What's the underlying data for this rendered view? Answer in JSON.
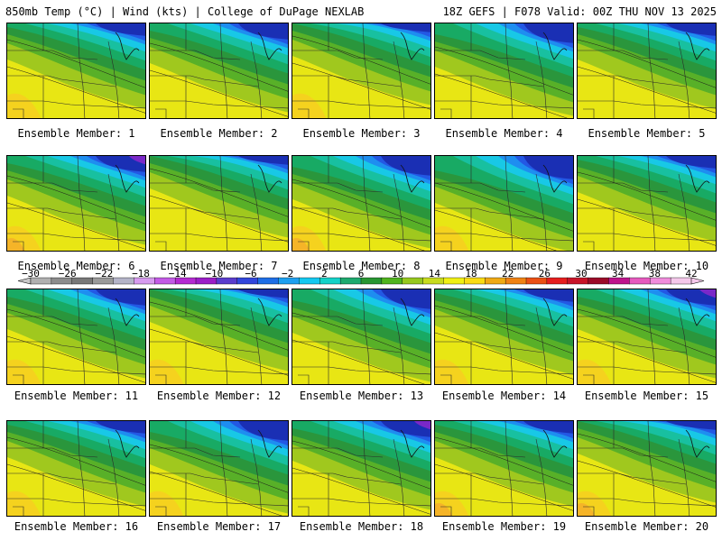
{
  "header": {
    "left": "850mb Temp (°C) | Wind (kts) | College of DuPage NEXLAB",
    "right": "18Z GEFS | F078 Valid: 00Z THU NOV 13 2025"
  },
  "panels": [
    {
      "caption": "Ensemble Member: 1"
    },
    {
      "caption": "Ensemble Member: 2"
    },
    {
      "caption": "Ensemble Member: 3"
    },
    {
      "caption": "Ensemble Member: 4"
    },
    {
      "caption": "Ensemble Member: 5"
    },
    {
      "caption": "Ensemble Member: 6"
    },
    {
      "caption": "Ensemble Member: 7"
    },
    {
      "caption": "Ensemble Member: 8"
    },
    {
      "caption": "Ensemble Member: 9"
    },
    {
      "caption": "Ensemble Member: 10"
    },
    {
      "caption": "Ensemble Member: 11"
    },
    {
      "caption": "Ensemble Member: 12"
    },
    {
      "caption": "Ensemble Member: 13"
    },
    {
      "caption": "Ensemble Member: 14"
    },
    {
      "caption": "Ensemble Member: 15"
    },
    {
      "caption": "Ensemble Member: 16"
    },
    {
      "caption": "Ensemble Member: 17"
    },
    {
      "caption": "Ensemble Member: 18"
    },
    {
      "caption": "Ensemble Member: 19"
    },
    {
      "caption": "Ensemble Member: 20"
    }
  ],
  "colorbar": {
    "ticks": [
      "−30",
      "−26",
      "−22",
      "−18",
      "−14",
      "−10",
      "−6",
      "−2",
      "2",
      "6",
      "10",
      "14",
      "18",
      "22",
      "26",
      "30",
      "34",
      "38",
      "42"
    ],
    "colors": [
      "#b0b0b0",
      "#8c8c8c",
      "#787878",
      "#9a9a9a",
      "#b4b4c8",
      "#d79bef",
      "#c35ae6",
      "#b42ad2",
      "#9b1ec8",
      "#5a3ccd",
      "#3246dc",
      "#1e6ee6",
      "#1ea0f0",
      "#14c8f0",
      "#14d2c8",
      "#1eaa6e",
      "#289632",
      "#50b41e",
      "#96c81e",
      "#c8dc1e",
      "#f0f014",
      "#fadc14",
      "#f0aa14",
      "#f08214",
      "#eb5014",
      "#e61e1e",
      "#c81428",
      "#9b0a28",
      "#be148c",
      "#e65abe",
      "#f08cdc",
      "#f5c8eb"
    ]
  }
}
